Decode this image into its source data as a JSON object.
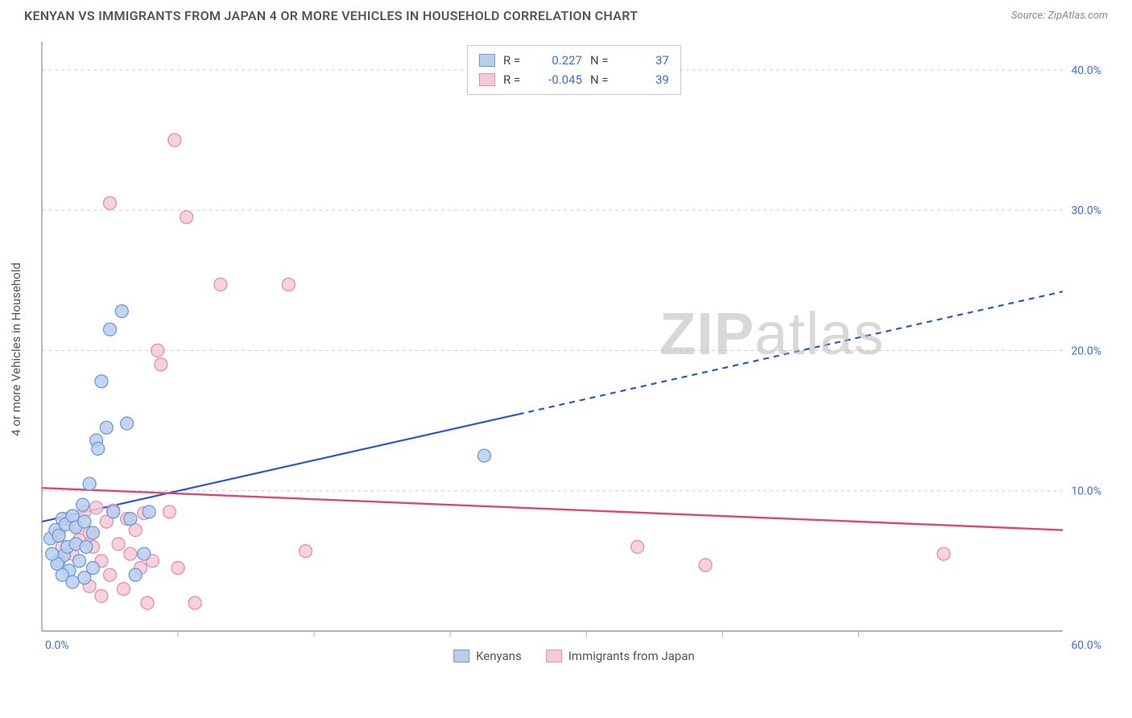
{
  "header": {
    "title": "KENYAN VS IMMIGRANTS FROM JAPAN 4 OR MORE VEHICLES IN HOUSEHOLD CORRELATION CHART",
    "source_prefix": "Source: ",
    "source": "ZipAtlas.com"
  },
  "chart": {
    "type": "scatter",
    "ylabel": "4 or more Vehicles in Household",
    "xlim": [
      0,
      60
    ],
    "ylim": [
      0,
      42
    ],
    "xtick_labels": {
      "0": "0.0%",
      "60": "60.0%"
    },
    "ytick_labels": {
      "10": "10.0%",
      "20": "20.0%",
      "30": "30.0%",
      "40": "40.0%"
    },
    "x_minor_ticks": [
      8,
      16,
      24,
      32,
      40,
      48
    ],
    "background_color": "#ffffff",
    "grid_color": "#cccccc",
    "axis_label_color": "#3b6fd8",
    "series": [
      {
        "name": "Kenyans",
        "key": "kenyans",
        "color_fill": "#b9cfee",
        "color_stroke": "#6e98d6",
        "marker_radius": 8,
        "R": "0.227",
        "N": "37",
        "trend": {
          "x1": 0,
          "y1": 7.8,
          "x2": 60,
          "y2": 24.2,
          "solid_until_x": 28,
          "color": "#2a5bbf",
          "width": 2.2
        },
        "points": [
          [
            0.5,
            6.6
          ],
          [
            0.8,
            7.2
          ],
          [
            1.0,
            5.0
          ],
          [
            1.0,
            6.8
          ],
          [
            1.2,
            8.0
          ],
          [
            1.3,
            5.4
          ],
          [
            1.4,
            7.6
          ],
          [
            1.5,
            6.0
          ],
          [
            1.6,
            4.3
          ],
          [
            1.8,
            8.2
          ],
          [
            2.0,
            6.2
          ],
          [
            2.0,
            7.4
          ],
          [
            2.2,
            5.0
          ],
          [
            2.4,
            9.0
          ],
          [
            2.5,
            7.8
          ],
          [
            2.6,
            6.0
          ],
          [
            2.8,
            10.5
          ],
          [
            3.0,
            7.0
          ],
          [
            3.2,
            13.6
          ],
          [
            3.3,
            13.0
          ],
          [
            3.5,
            17.8
          ],
          [
            3.8,
            14.5
          ],
          [
            4.0,
            21.5
          ],
          [
            4.2,
            8.5
          ],
          [
            4.7,
            22.8
          ],
          [
            5.0,
            14.8
          ],
          [
            5.2,
            8.0
          ],
          [
            5.5,
            4.0
          ],
          [
            6.0,
            5.5
          ],
          [
            6.3,
            8.5
          ],
          [
            3.0,
            4.5
          ],
          [
            2.5,
            3.8
          ],
          [
            1.8,
            3.5
          ],
          [
            1.2,
            4.0
          ],
          [
            0.9,
            4.8
          ],
          [
            0.6,
            5.5
          ],
          [
            26.0,
            12.5
          ]
        ]
      },
      {
        "name": "Immigrants from Japan",
        "key": "japan",
        "color_fill": "#f6c9d6",
        "color_stroke": "#e38fa8",
        "marker_radius": 8,
        "R": "-0.045",
        "N": "39",
        "trend": {
          "x1": 0,
          "y1": 10.2,
          "x2": 60,
          "y2": 7.2,
          "solid_until_x": 60,
          "color": "#d94876",
          "width": 2.4
        },
        "points": [
          [
            1.0,
            7.0
          ],
          [
            1.2,
            6.0
          ],
          [
            1.5,
            8.0
          ],
          [
            1.8,
            5.5
          ],
          [
            2.0,
            7.5
          ],
          [
            2.2,
            6.5
          ],
          [
            2.5,
            8.5
          ],
          [
            2.8,
            7.0
          ],
          [
            3.0,
            6.0
          ],
          [
            3.2,
            8.8
          ],
          [
            3.5,
            5.0
          ],
          [
            3.8,
            7.8
          ],
          [
            4.0,
            4.0
          ],
          [
            4.2,
            8.6
          ],
          [
            4.5,
            6.2
          ],
          [
            4.8,
            3.0
          ],
          [
            5.0,
            8.0
          ],
          [
            5.2,
            5.5
          ],
          [
            5.5,
            7.2
          ],
          [
            5.8,
            4.5
          ],
          [
            6.0,
            8.4
          ],
          [
            6.2,
            2.0
          ],
          [
            6.5,
            5.0
          ],
          [
            7.0,
            19.0
          ],
          [
            7.5,
            8.5
          ],
          [
            7.8,
            35.0
          ],
          [
            4.0,
            30.5
          ],
          [
            6.8,
            20.0
          ],
          [
            8.5,
            29.5
          ],
          [
            10.5,
            24.7
          ],
          [
            14.5,
            24.7
          ],
          [
            9.0,
            2.0
          ],
          [
            8.0,
            4.5
          ],
          [
            15.5,
            5.7
          ],
          [
            35.0,
            6.0
          ],
          [
            39.0,
            4.7
          ],
          [
            53.0,
            5.5
          ],
          [
            3.5,
            2.5
          ],
          [
            2.8,
            3.2
          ]
        ]
      }
    ],
    "legend_top": {
      "R_label": "R =",
      "N_label": "N ="
    },
    "watermark": {
      "part1": "ZIP",
      "part2": "atlas"
    }
  }
}
